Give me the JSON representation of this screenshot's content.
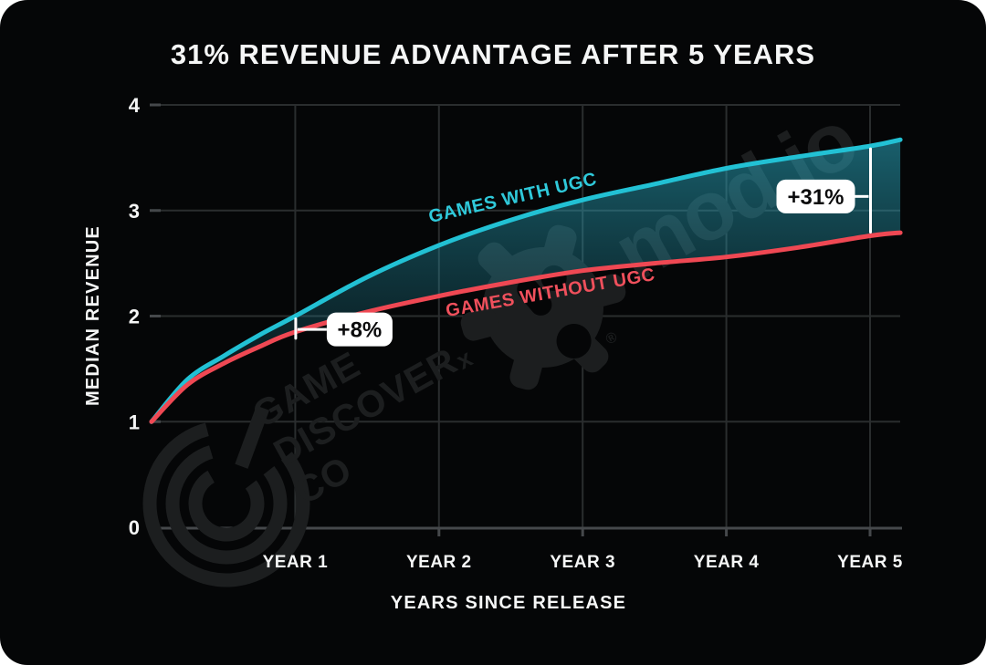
{
  "chart_data": {
    "type": "line",
    "title": "31% REVENUE ADVANTAGE AFTER 5 YEARS",
    "xlabel": "YEARS SINCE RELEASE",
    "ylabel": "MEDIAN REVENUE",
    "ylim": [
      0,
      4
    ],
    "xlim": [
      0,
      5.21
    ],
    "grid": true,
    "legend": "inline-labels",
    "y_ticks": [
      0,
      1,
      2,
      3,
      4
    ],
    "x_tick_labels": [
      "YEAR 1",
      "YEAR 2",
      "YEAR 3",
      "YEAR 4",
      "YEAR 5"
    ],
    "x": [
      0,
      0.25,
      0.5,
      0.75,
      1,
      1.5,
      2,
      2.5,
      3,
      3.5,
      4,
      4.5,
      5,
      5.21
    ],
    "series": [
      {
        "name": "GAMES WITH UGC",
        "color": "#22c1d4",
        "values": [
          1.0,
          1.4,
          1.62,
          1.82,
          2.0,
          2.37,
          2.67,
          2.91,
          3.1,
          3.25,
          3.4,
          3.51,
          3.61,
          3.67
        ]
      },
      {
        "name": "GAMES WITHOUT UGC",
        "color": "#ef4853",
        "values": [
          1.0,
          1.35,
          1.55,
          1.71,
          1.85,
          2.04,
          2.19,
          2.32,
          2.43,
          2.5,
          2.56,
          2.65,
          2.76,
          2.79
        ]
      }
    ],
    "annotations": [
      {
        "label": "+8%",
        "year": 1,
        "side": "right"
      },
      {
        "label": "+31%",
        "year": 5,
        "side": "left"
      }
    ]
  },
  "watermarks": {
    "brand_left_lines": [
      "GAME",
      "DISCOVER",
      "CO"
    ],
    "separator": "x",
    "brand_right": "mod.io",
    "registered": "®"
  },
  "colors": {
    "background": "#050607",
    "grid": "#2a2d2e",
    "axis": "#45484b",
    "text": "#f5f6f6",
    "with_ugc": "#22c1d4",
    "without_ugc": "#ef4853",
    "with_ugc_label": "#2fc9da",
    "without_ugc_label": "#f0505c",
    "band_top": "rgba(45,185,210,0.52)",
    "band_mid": "rgba(36,150,172,0.24)",
    "band_bottom": "rgba(30,120,140,0.04)",
    "watermark": "#1c1e1f",
    "badge_bg": "#ffffff",
    "badge_text": "#0b0b0c"
  }
}
